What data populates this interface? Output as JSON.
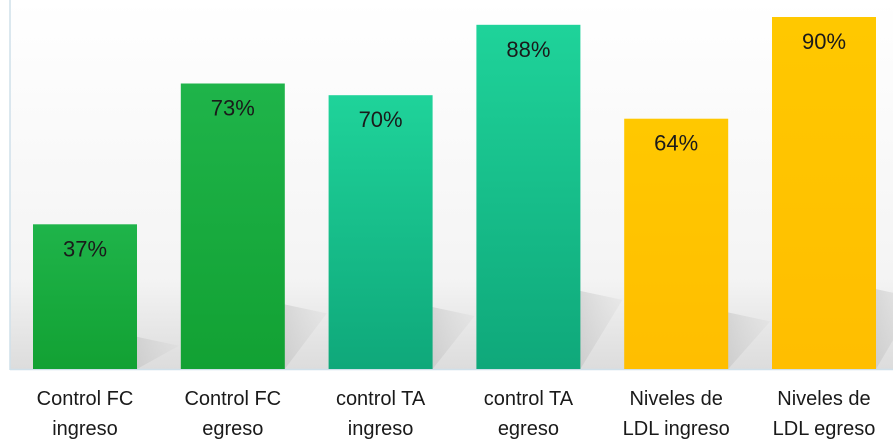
{
  "chart_data": {
    "type": "bar",
    "categories": [
      [
        "Control FC",
        "ingreso"
      ],
      [
        "Control FC",
        "egreso"
      ],
      [
        "control TA",
        "ingreso"
      ],
      [
        "control TA",
        "egreso"
      ],
      [
        "Niveles de",
        "LDL ingreso"
      ],
      [
        "Niveles de",
        "LDL egreso"
      ]
    ],
    "values": [
      37,
      73,
      70,
      88,
      64,
      90
    ],
    "value_labels": [
      "37%",
      "73%",
      "70%",
      "88%",
      "64%",
      "90%"
    ],
    "bar_colors": [
      "#18a93c",
      "#18a93c",
      "#1cc089",
      "#1cc089",
      "#ffc600",
      "#ffc600"
    ],
    "title": "",
    "xlabel": "",
    "ylabel": "",
    "ylim": [
      0,
      100
    ],
    "grid": false,
    "legend": "none"
  }
}
